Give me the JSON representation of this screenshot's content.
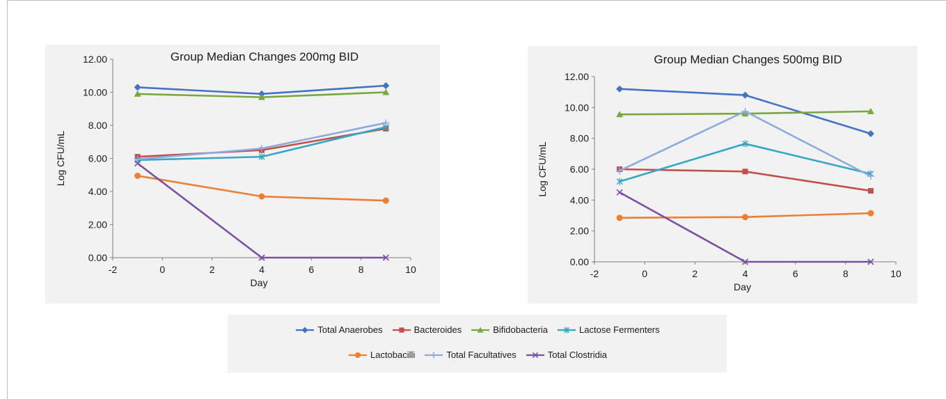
{
  "colors": {
    "total_anaerobes": "#4472c4",
    "bacteroides": "#c0504d",
    "bifidobacteria": "#77a83f",
    "lactose_fermenters": "#33a7c3",
    "lactobacilli": "#ec7f32",
    "total_facultatives": "#8eaadc",
    "total_clostridia": "#7a50a3"
  },
  "legend": {
    "row1": [
      {
        "label": "Total Anaerobes",
        "key": "total_anaerobes",
        "marker": "diamond"
      },
      {
        "label": "Bacteroides",
        "key": "bacteroides",
        "marker": "square"
      },
      {
        "label": "Bifidobacteria",
        "key": "bifidobacteria",
        "marker": "triangle"
      },
      {
        "label": "Lactose Fermenters",
        "key": "lactose_fermenters",
        "marker": "star"
      }
    ],
    "row2": [
      {
        "label": "Lactobacilli",
        "key": "lactobacilli",
        "marker": "circle"
      },
      {
        "label": "Total Facultatives",
        "key": "total_facultatives",
        "marker": "plus"
      },
      {
        "label": "Total Clostridia",
        "key": "total_clostridia",
        "marker": "x"
      }
    ]
  },
  "chart_data": [
    {
      "type": "line",
      "title": "Group Median Changes 200mg BID",
      "xlabel": "Day",
      "ylabel": "Log CFU/mL",
      "xlim": [
        -2,
        10
      ],
      "ylim": [
        0,
        12
      ],
      "x_ticks": [
        "-2",
        "0",
        "2",
        "4",
        "6",
        "8",
        "10"
      ],
      "y_ticks": [
        "0.00",
        "2.00",
        "4.00",
        "6.00",
        "8.00",
        "10.00",
        "12.00"
      ],
      "x": [
        -1,
        4,
        9
      ],
      "series": [
        {
          "name": "Total Anaerobes",
          "key": "total_anaerobes",
          "marker": "diamond",
          "values": [
            10.3,
            9.9,
            10.4
          ]
        },
        {
          "name": "Bacteroides",
          "key": "bacteroides",
          "marker": "square",
          "values": [
            6.1,
            6.5,
            7.8
          ]
        },
        {
          "name": "Bifidobacteria",
          "key": "bifidobacteria",
          "marker": "triangle",
          "values": [
            9.9,
            9.7,
            10.0
          ]
        },
        {
          "name": "Lactose Fermenters",
          "key": "lactose_fermenters",
          "marker": "star",
          "values": [
            5.9,
            6.1,
            7.9
          ]
        },
        {
          "name": "Lactobacilli",
          "key": "lactobacilli",
          "marker": "circle",
          "values": [
            4.95,
            3.7,
            3.45
          ]
        },
        {
          "name": "Total Facultatives",
          "key": "total_facultatives",
          "marker": "plus",
          "values": [
            5.95,
            6.6,
            8.15
          ]
        },
        {
          "name": "Total Clostridia",
          "key": "total_clostridia",
          "marker": "x",
          "values": [
            5.7,
            0.0,
            0.0
          ]
        }
      ]
    },
    {
      "type": "line",
      "title": "Group Median Changes 500mg BID",
      "xlabel": "Day",
      "ylabel": "Log CFU/mL",
      "xlim": [
        -2,
        10
      ],
      "ylim": [
        0,
        12
      ],
      "x_ticks": [
        "-2",
        "0",
        "2",
        "4",
        "6",
        "8",
        "10"
      ],
      "y_ticks": [
        "0.00",
        "2.00",
        "4.00",
        "6.00",
        "8.00",
        "10.00",
        "12.00"
      ],
      "x": [
        -1,
        4,
        9
      ],
      "series": [
        {
          "name": "Total Anaerobes",
          "key": "total_anaerobes",
          "marker": "diamond",
          "values": [
            11.2,
            10.8,
            8.3
          ]
        },
        {
          "name": "Bacteroides",
          "key": "bacteroides",
          "marker": "square",
          "values": [
            6.0,
            5.85,
            4.6
          ]
        },
        {
          "name": "Bifidobacteria",
          "key": "bifidobacteria",
          "marker": "triangle",
          "values": [
            9.55,
            9.6,
            9.75
          ]
        },
        {
          "name": "Lactose Fermenters",
          "key": "lactose_fermenters",
          "marker": "star",
          "values": [
            5.2,
            7.65,
            5.7
          ]
        },
        {
          "name": "Lactobacilli",
          "key": "lactobacilli",
          "marker": "circle",
          "values": [
            2.85,
            2.9,
            3.15
          ]
        },
        {
          "name": "Total Facultatives",
          "key": "total_facultatives",
          "marker": "plus",
          "values": [
            5.9,
            9.75,
            5.55
          ]
        },
        {
          "name": "Total Clostridia",
          "key": "total_clostridia",
          "marker": "x",
          "values": [
            4.5,
            0.0,
            0.0
          ]
        }
      ]
    }
  ]
}
